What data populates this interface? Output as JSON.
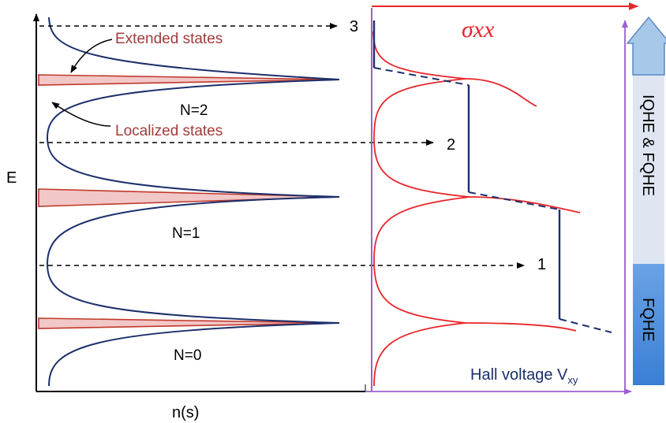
{
  "axes": {
    "y_label": "E",
    "x_label": "n(s)"
  },
  "annotations": {
    "extended_states": "Extended states",
    "localized_states": "Localized states"
  },
  "levels": [
    {
      "label": "N=2",
      "peak_key": "2"
    },
    {
      "label": "N=1",
      "peak_key": "1"
    },
    {
      "label": "N=0",
      "peak_key": "0"
    }
  ],
  "fermi_markers": [
    "3",
    "2",
    "1"
  ],
  "sigma_label": "σxx",
  "hall_label": {
    "text": "Hall voltage V",
    "subscript": "xy"
  },
  "regime_bar": {
    "iqhe_fqhe": "IQHE & FQHE",
    "fqhe": "FQHE",
    "colors": {
      "light": "#dfe6f2",
      "blue": "#4a8fdc",
      "arrow": "#a8c8ea"
    }
  },
  "colors": {
    "dos_curve": "#1c2f6b",
    "extended_fill": "#f2c7c7",
    "extended_line": "#c0392b",
    "sigma_curve": "#e8262a",
    "annotation_text": "#a23b3b",
    "frame_purple": "#9b5fd0",
    "hall_text": "#1c2f6b"
  }
}
